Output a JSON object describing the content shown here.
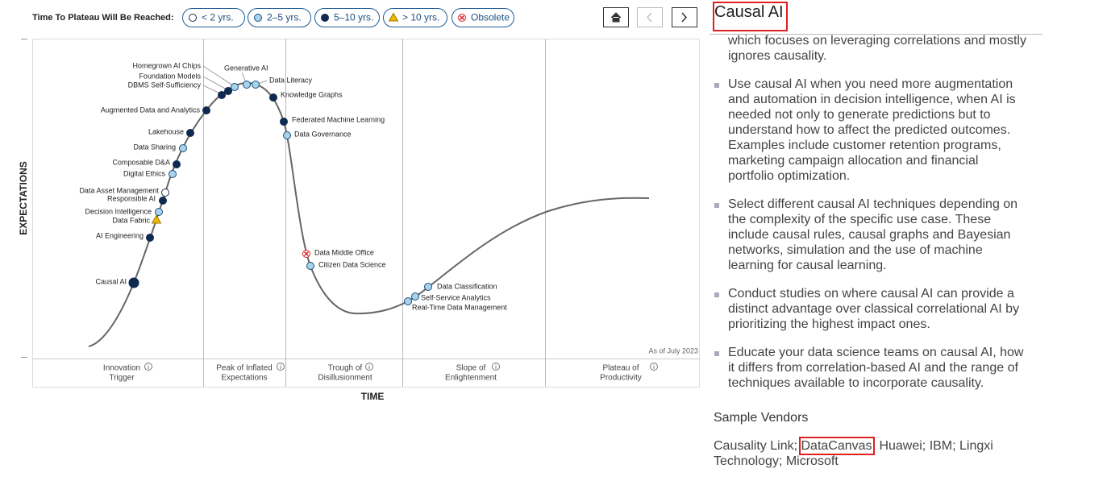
{
  "legend": {
    "title": "Time To Plateau Will Be Reached:",
    "items": [
      "< 2 yrs.",
      "2–5 yrs.",
      "5–10 yrs.",
      "> 10 yrs.",
      "Obsolete"
    ]
  },
  "chart": {
    "y_axis": "EXPECTATIONS",
    "x_axis": "TIME",
    "as_of": "As of July 2023",
    "phases": [
      [
        "Innovation",
        "Trigger"
      ],
      [
        "Peak of Inflated",
        "Expectations"
      ],
      [
        "Trough of",
        "Disillusionment"
      ],
      [
        "Slope of",
        "Enlightenment"
      ],
      [
        "Plateau of",
        "Productivity"
      ]
    ],
    "technologies": [
      {
        "name": "Homegrown AI Chips",
        "plateau": "2–5 yrs."
      },
      {
        "name": "Foundation Models",
        "plateau": "5–10 yrs."
      },
      {
        "name": "DBMS Self-Sufficiency",
        "plateau": "5–10 yrs."
      },
      {
        "name": "Generative AI",
        "plateau": "2–5 yrs."
      },
      {
        "name": "Data Literacy",
        "plateau": "2–5 yrs."
      },
      {
        "name": "Knowledge Graphs",
        "plateau": "5–10 yrs."
      },
      {
        "name": "Augmented Data and Analytics",
        "plateau": "5–10 yrs."
      },
      {
        "name": "Federated Machine Learning",
        "plateau": "5–10 yrs."
      },
      {
        "name": "Lakehouse",
        "plateau": "5–10 yrs."
      },
      {
        "name": "Data Governance",
        "plateau": "2–5 yrs."
      },
      {
        "name": "Data Sharing",
        "plateau": "2–5 yrs."
      },
      {
        "name": "Composable D&A",
        "plateau": "5–10 yrs."
      },
      {
        "name": "Digital Ethics",
        "plateau": "2–5 yrs."
      },
      {
        "name": "Data Asset Management",
        "plateau": "< 2 yrs."
      },
      {
        "name": "Responsible AI",
        "plateau": "5–10 yrs."
      },
      {
        "name": "Decision Intelligence",
        "plateau": "2–5 yrs."
      },
      {
        "name": "Data Fabric",
        "plateau": "> 10 yrs."
      },
      {
        "name": "AI Engineering",
        "plateau": "5–10 yrs."
      },
      {
        "name": "Causal AI",
        "plateau": "5–10 yrs."
      },
      {
        "name": "Data Middle Office",
        "plateau": "Obsolete"
      },
      {
        "name": "Citizen Data Science",
        "plateau": "2–5 yrs."
      },
      {
        "name": "Data Classification",
        "plateau": "2–5 yrs."
      },
      {
        "name": "Self-Service Analytics",
        "plateau": "2–5 yrs."
      },
      {
        "name": "Real-Time Data Management",
        "plateau": "2–5 yrs."
      }
    ]
  },
  "panel": {
    "title": "Causal AI",
    "intro": "which focuses on leveraging correlations and mostly ignores causality.",
    "bullets": [
      "Use causal AI when you need more augmentation and automation in decision intelligence, when AI is needed not only to generate predictions but to understand how to affect the predicted outcomes. Examples include customer retention programs, marketing campaign allocation and financial portfolio optimization.",
      "Select different causal AI techniques depending on the complexity of the specific use case. These include causal rules, causal graphs and Bayesian networks, simulation and the use of machine learning for causal learning.",
      "Conduct studies on where causal AI can provide a distinct advantage over classical correlational AI by prioritizing the highest impact ones.",
      "Educate your data science teams on causal AI, how it differs from correlation-based AI and the range of techniques available to incorporate causality."
    ],
    "vendors_heading": "Sample Vendors",
    "vendors": [
      "Causality Link; ",
      "DataCanvas",
      "; Huawei; IBM; Lingxi Technology; Microsoft"
    ]
  }
}
